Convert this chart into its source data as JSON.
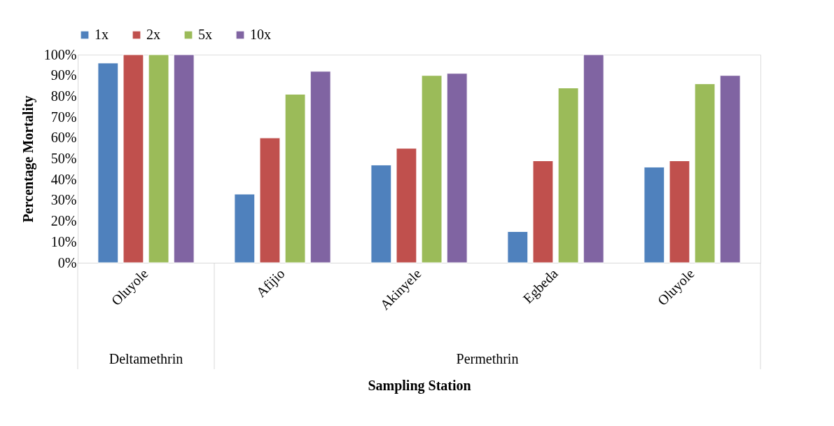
{
  "chart_data": {
    "type": "bar",
    "xlabel": "Sampling Station",
    "ylabel": "Percentage Mortality",
    "categories": [
      "Oluyole",
      "Afijio",
      "Akinyele",
      "Egbeda",
      "Oluyole"
    ],
    "series": [
      {
        "name": "1x",
        "color": "#4f81bd",
        "values": [
          96,
          33,
          47,
          15,
          46
        ]
      },
      {
        "name": "2x",
        "color": "#c0504d",
        "values": [
          100,
          60,
          55,
          49,
          49
        ]
      },
      {
        "name": "5x",
        "color": "#9bbb59",
        "values": [
          100,
          81,
          90,
          84,
          86
        ]
      },
      {
        "name": "10x",
        "color": "#8064a2",
        "values": [
          100,
          92,
          91,
          100,
          90
        ]
      }
    ],
    "ylim": [
      0,
      100
    ],
    "yticks": [
      {
        "value": 0,
        "label": "0%"
      },
      {
        "value": 10,
        "label": "10%"
      },
      {
        "value": 20,
        "label": "20%"
      },
      {
        "value": 30,
        "label": "30%"
      },
      {
        "value": 40,
        "label": "40%"
      },
      {
        "value": 50,
        "label": "50%"
      },
      {
        "value": 60,
        "label": "60%"
      },
      {
        "value": 70,
        "label": "70%"
      },
      {
        "value": 80,
        "label": "80%"
      },
      {
        "value": 90,
        "label": "90%"
      },
      {
        "value": 100,
        "label": "100%"
      }
    ],
    "annotations": [
      "Deltamethrin",
      "Permethrin"
    ],
    "grid": false,
    "legend": "top"
  }
}
